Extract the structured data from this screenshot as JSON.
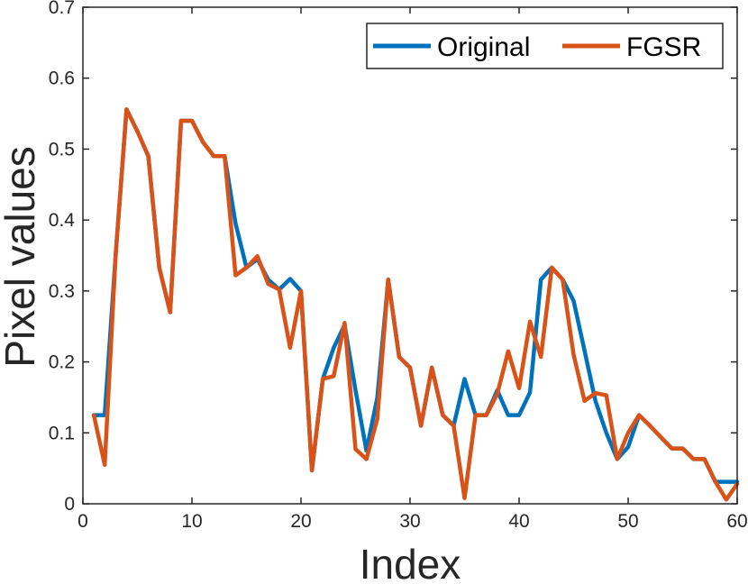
{
  "chart_data": {
    "type": "line",
    "title": "",
    "xlabel": "Index",
    "ylabel": "Pixel values",
    "xlim": [
      0,
      60
    ],
    "ylim": [
      0,
      0.7
    ],
    "xticks": [
      0,
      10,
      20,
      30,
      40,
      50,
      60
    ],
    "yticks": [
      0,
      0.1,
      0.2,
      0.3,
      0.4,
      0.5,
      0.6,
      0.7
    ],
    "grid": false,
    "legend_position": "top-right",
    "x": [
      1,
      2,
      3,
      4,
      5,
      6,
      7,
      8,
      9,
      10,
      11,
      12,
      13,
      14,
      15,
      16,
      17,
      18,
      19,
      20,
      21,
      22,
      23,
      24,
      25,
      26,
      27,
      28,
      29,
      30,
      31,
      32,
      33,
      34,
      35,
      36,
      37,
      38,
      39,
      40,
      41,
      42,
      43,
      44,
      45,
      46,
      47,
      48,
      49,
      50,
      51,
      52,
      53,
      54,
      55,
      56,
      57,
      58,
      59,
      60
    ],
    "series": [
      {
        "name": "Original",
        "color": "#0072BD",
        "values": [
          0.125,
          0.125,
          0.35,
          0.556,
          0.525,
          0.49,
          0.333,
          0.27,
          0.54,
          0.54,
          0.51,
          0.49,
          0.49,
          0.395,
          0.333,
          0.345,
          0.316,
          0.302,
          0.317,
          0.3,
          0.047,
          0.176,
          0.22,
          0.252,
          0.16,
          0.075,
          0.15,
          0.316,
          0.207,
          0.192,
          0.11,
          0.192,
          0.125,
          0.11,
          0.176,
          0.125,
          0.125,
          0.16,
          0.125,
          0.125,
          0.157,
          0.316,
          0.333,
          0.316,
          0.286,
          0.216,
          0.145,
          0.1,
          0.063,
          0.08,
          0.125,
          0.11,
          0.094,
          0.078,
          0.078,
          0.063,
          0.063,
          0.031,
          0.031,
          0.031
        ]
      },
      {
        "name": "FGSR",
        "color": "#D95319",
        "values": [
          0.125,
          0.055,
          0.35,
          0.556,
          0.525,
          0.49,
          0.333,
          0.27,
          0.54,
          0.54,
          0.51,
          0.49,
          0.49,
          0.322,
          0.333,
          0.349,
          0.31,
          0.302,
          0.22,
          0.3,
          0.047,
          0.176,
          0.18,
          0.255,
          0.077,
          0.063,
          0.12,
          0.316,
          0.207,
          0.192,
          0.11,
          0.192,
          0.125,
          0.11,
          0.008,
          0.125,
          0.125,
          0.155,
          0.215,
          0.163,
          0.257,
          0.207,
          0.333,
          0.316,
          0.21,
          0.145,
          0.156,
          0.153,
          0.063,
          0.1,
          0.125,
          0.11,
          0.094,
          0.078,
          0.078,
          0.063,
          0.063,
          0.031,
          0.006,
          0.028
        ]
      }
    ]
  }
}
